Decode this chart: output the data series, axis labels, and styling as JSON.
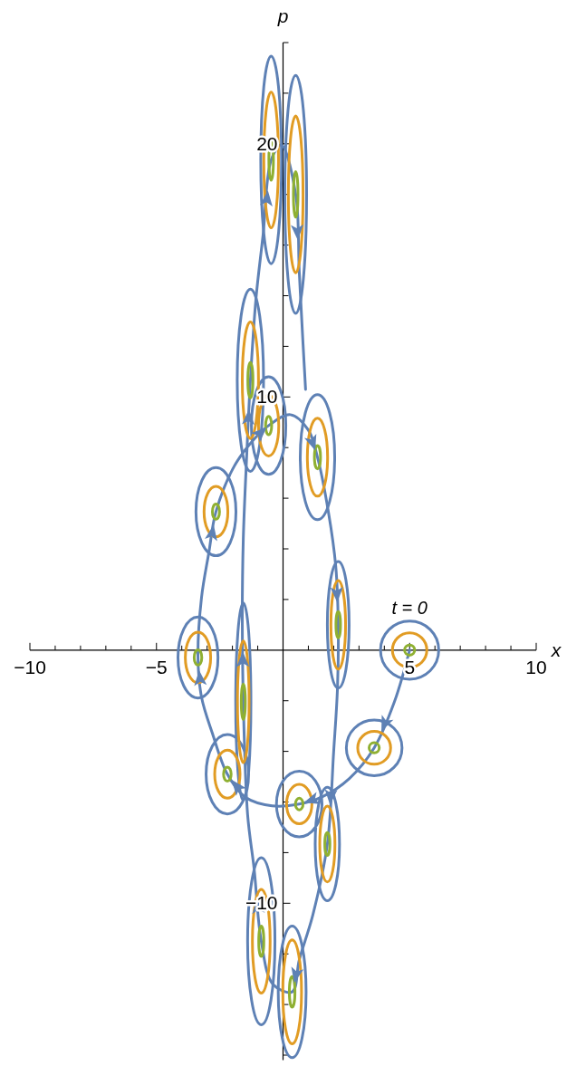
{
  "chart_data": {
    "type": "line",
    "xlabel": "x",
    "ylabel": "p",
    "xlim": [
      -10,
      10
    ],
    "ylim": [
      -16.2,
      24
    ],
    "xticks": [
      -10,
      {
        "value": -9,
        "label": null
      },
      {
        "value": -8,
        "label": null
      },
      {
        "value": -7,
        "label": null
      },
      {
        "value": -6,
        "label": null
      },
      -5,
      {
        "value": -4,
        "label": null
      },
      {
        "value": -3,
        "label": null
      },
      {
        "value": -2,
        "label": null
      },
      {
        "value": -1,
        "label": null
      },
      {
        "value": 1,
        "label": null
      },
      {
        "value": 2,
        "label": null
      },
      {
        "value": 3,
        "label": null
      },
      {
        "value": 4,
        "label": null
      },
      5,
      {
        "value": 6,
        "label": null
      },
      {
        "value": 7,
        "label": null
      },
      {
        "value": 8,
        "label": null
      },
      {
        "value": 9,
        "label": null
      },
      10
    ],
    "yticks": [
      {
        "value": -16,
        "label": null
      },
      {
        "value": -14,
        "label": null
      },
      {
        "value": -12,
        "label": null
      },
      -10,
      {
        "value": -8,
        "label": null
      },
      {
        "value": -6,
        "label": null
      },
      {
        "value": -4,
        "label": null
      },
      {
        "value": -2,
        "label": null
      },
      {
        "value": 2,
        "label": null
      },
      {
        "value": 4,
        "label": null
      },
      {
        "value": 6,
        "label": null
      },
      {
        "value": 8,
        "label": null
      },
      10,
      {
        "value": 12,
        "label": null
      },
      {
        "value": 14,
        "label": null
      },
      {
        "value": 16,
        "label": null
      },
      {
        "value": 18,
        "label": null
      },
      20,
      {
        "value": 22,
        "label": null
      },
      {
        "value": 24,
        "label": null
      }
    ],
    "annotations": [
      {
        "text": "t = 0",
        "x": 5,
        "y": 0
      }
    ],
    "series": [
      {
        "color": "#5e81b5",
        "x": [
          5,
          4.4,
          3.6,
          2.61,
          1.54,
          0.64,
          -0.43,
          -1.5,
          -2.2,
          -2.79,
          -3.22,
          -3.36,
          -3.22,
          -2.93,
          -2.65,
          -1.93,
          -1.14,
          -0.57,
          0.29,
          1.0,
          1.36,
          1.79,
          2.08,
          2.18,
          2.15,
          2.0,
          1.75,
          1.18,
          0.64,
          0.36,
          -0.4,
          -0.86,
          -1.14,
          -1.4,
          -1.57,
          -1.61,
          -1.57,
          -1.43,
          -1.29,
          -1.07,
          -0.79,
          -0.47,
          -0.07,
          0.5,
          0.64,
          0.79,
          0.89
        ],
        "values": [
          0,
          -2.04,
          -3.86,
          -5.08,
          -5.8,
          -6.08,
          -6.15,
          -5.8,
          -4.9,
          -3.29,
          -1.86,
          -0.29,
          2.08,
          3.86,
          5.47,
          7.26,
          8.34,
          8.87,
          9.3,
          8.69,
          7.62,
          5.47,
          3.33,
          1.0,
          -1.5,
          -4.0,
          -7.66,
          -10.45,
          -12.24,
          -13.5,
          -13.2,
          -11.5,
          -8.66,
          -6.5,
          -2.04,
          1.36,
          4.4,
          7.8,
          10.66,
          13.88,
          16.39,
          19.36,
          19.96,
          18.0,
          14.96,
          12.09,
          10.3
        ]
      },
      {
        "color": "#5e81b5",
        "x": [
          6.15,
          5,
          3.85,
          5,
          6.15,
          null,
          4.7,
          3.6,
          2.5,
          3.6,
          4.7,
          null,
          1.54,
          0.64,
          -0.26,
          0.64,
          1.54,
          null,
          -1.36,
          -2.2,
          -3.04,
          -2.2,
          -1.36,
          null,
          -2.57,
          -3.36,
          -4.15,
          -3.36,
          -2.57,
          null,
          -1.86,
          -2.65,
          -3.44,
          -2.65,
          -1.86,
          null,
          0.11,
          -0.57,
          -1.25,
          -0.57,
          0.11,
          null,
          2.04,
          1.36,
          0.68,
          1.36,
          2.04,
          null,
          2.61,
          2.18,
          1.75,
          2.18,
          2.61,
          null,
          2.23,
          1.75,
          1.27,
          1.75,
          2.23,
          null,
          0.91,
          0.36,
          -0.19,
          0.36,
          0.91,
          null,
          -0.32,
          -0.86,
          -1.4,
          -0.86,
          -0.32,
          null,
          -1.27,
          -1.57,
          -1.87,
          -1.57,
          -1.27,
          null,
          -0.77,
          -1.29,
          -1.81,
          -1.29,
          -0.77,
          null,
          -0.06,
          -0.47,
          -0.88,
          -0.47,
          -0.06,
          null,
          0.93,
          0.5,
          0.07,
          0.5,
          0.93
        ],
        "values": [
          0,
          1.15,
          0,
          -1.15,
          0,
          null,
          -3.86,
          -2.76,
          -3.86,
          -4.96,
          -3.86,
          null,
          -6.08,
          -4.78,
          -6.08,
          -7.38,
          -6.08,
          null,
          -4.9,
          -3.33,
          -4.9,
          -6.47,
          -4.9,
          null,
          -0.29,
          1.31,
          -0.29,
          -1.89,
          -0.29,
          null,
          5.47,
          7.21,
          5.47,
          3.73,
          5.47,
          null,
          8.87,
          10.8,
          8.87,
          6.94,
          8.87,
          null,
          7.62,
          10.09,
          7.62,
          5.15,
          7.62,
          null,
          1,
          3.5,
          1,
          -1.5,
          1,
          null,
          -7.66,
          -5.42,
          -7.66,
          -9.9,
          -7.66,
          null,
          -13.5,
          -10.9,
          -13.5,
          -16.1,
          -13.5,
          null,
          -11.5,
          -8.2,
          -11.5,
          -14.8,
          -11.5,
          null,
          -2.04,
          1.86,
          -2.04,
          -5.94,
          -2.04,
          null,
          10.66,
          14.26,
          10.66,
          7.06,
          10.66,
          null,
          19.36,
          23.46,
          19.36,
          15.26,
          19.36,
          null,
          18,
          22.7,
          18,
          13.3,
          18
        ]
      },
      {
        "color": "#e19c24",
        "x": [
          5.68,
          5,
          4.32,
          5,
          5.68,
          null,
          4.25,
          3.6,
          2.95,
          3.6,
          4.25,
          null,
          1.14,
          0.64,
          0.14,
          0.64,
          1.14,
          null,
          -1.7,
          -2.2,
          -2.7,
          -2.2,
          -1.7,
          null,
          -2.86,
          -3.36,
          -3.86,
          -3.36,
          -2.86,
          null,
          -2.18,
          -2.65,
          -3.12,
          -2.65,
          -2.18,
          null,
          -0.17,
          -0.57,
          -0.97,
          -0.57,
          -0.17,
          null,
          1.76,
          1.36,
          0.96,
          1.36,
          1.76,
          null,
          2.47,
          2.18,
          1.89,
          2.18,
          2.47,
          null,
          2.05,
          1.75,
          1.45,
          1.75,
          2.05,
          null,
          0.73,
          0.36,
          -0.01,
          0.36,
          0.73,
          null,
          -0.51,
          -0.86,
          -1.21,
          -0.86,
          -0.51,
          null,
          -1.34,
          -1.57,
          -1.8,
          -1.57,
          -1.34,
          null,
          -0.97,
          -1.29,
          -1.61,
          -1.29,
          -0.97,
          null,
          -0.18,
          -0.47,
          -0.76,
          -0.47,
          -0.18,
          null,
          0.79,
          0.5,
          0.21,
          0.5,
          0.79
        ],
        "values": [
          0,
          0.68,
          0,
          -0.68,
          0,
          null,
          -3.86,
          -3.21,
          -3.86,
          -4.51,
          -3.86,
          null,
          -6.08,
          -5.3,
          -6.08,
          -6.86,
          -6.08,
          null,
          -4.9,
          -3.95,
          -4.9,
          -5.85,
          -4.9,
          null,
          -0.29,
          0.71,
          -0.29,
          -1.29,
          -0.29,
          null,
          5.47,
          6.47,
          5.47,
          4.47,
          5.47,
          null,
          8.87,
          10.07,
          8.87,
          7.67,
          8.87,
          null,
          7.62,
          9.16,
          7.62,
          6.08,
          7.62,
          null,
          1,
          2.75,
          1,
          -0.75,
          1,
          null,
          -7.66,
          -6.16,
          -7.66,
          -9.16,
          -7.66,
          null,
          -13.5,
          -11.45,
          -13.5,
          -15.55,
          -13.5,
          null,
          -11.5,
          -9.45,
          -11.5,
          -13.55,
          -11.5,
          null,
          -2.04,
          0.36,
          -2.04,
          -4.44,
          -2.04,
          null,
          10.66,
          12.96,
          10.66,
          8.36,
          10.66,
          null,
          19.36,
          22.04,
          19.36,
          16.68,
          19.36,
          null,
          18,
          21.1,
          18,
          14.9,
          18
        ]
      },
      {
        "color": "#8fb032",
        "x": [
          5.2,
          5,
          4.8,
          5,
          5.2,
          null,
          3.8,
          3.6,
          3.4,
          3.6,
          3.8,
          null,
          0.79,
          0.64,
          0.49,
          0.64,
          0.79,
          null,
          -2.05,
          -2.2,
          -2.35,
          -2.2,
          -2.05,
          null,
          -3.21,
          -3.36,
          -3.51,
          -3.36,
          -3.21,
          null,
          -2.51,
          -2.65,
          -2.79,
          -2.65,
          -2.51,
          null,
          -0.45,
          -0.57,
          -0.69,
          -0.57,
          -0.45,
          null,
          1.48,
          1.36,
          1.24,
          1.36,
          1.48,
          null,
          2.27,
          2.18,
          2.09,
          2.18,
          2.27,
          null,
          1.85,
          1.75,
          1.65,
          1.75,
          1.85,
          null,
          0.47,
          0.36,
          0.25,
          0.36,
          0.47,
          null,
          -0.76,
          -0.86,
          -0.96,
          -0.86,
          -0.76,
          null,
          -1.49,
          -1.57,
          -1.65,
          -1.57,
          -1.49,
          null,
          -1.19,
          -1.29,
          -1.39,
          -1.29,
          -1.19,
          null,
          -0.38,
          -0.47,
          -0.56,
          -0.47,
          -0.38,
          null,
          0.59,
          0.5,
          0.41,
          0.5,
          0.59
        ],
        "values": [
          0,
          0.2,
          0,
          -0.2,
          0,
          null,
          -3.86,
          -3.66,
          -3.86,
          -4.06,
          -3.86,
          null,
          -6.08,
          -5.85,
          -6.08,
          -6.31,
          -6.08,
          null,
          -4.9,
          -4.62,
          -4.9,
          -5.18,
          -4.9,
          null,
          -0.29,
          0.01,
          -0.29,
          -0.59,
          -0.29,
          null,
          5.47,
          5.77,
          5.47,
          5.17,
          5.47,
          null,
          8.87,
          9.23,
          8.87,
          8.51,
          8.87,
          null,
          7.62,
          8.08,
          7.62,
          7.16,
          7.62,
          null,
          1,
          1.52,
          1,
          0.48,
          1,
          null,
          -7.66,
          -7.21,
          -7.66,
          -8.11,
          -7.66,
          null,
          -13.5,
          -12.9,
          -13.5,
          -14.1,
          -13.5,
          null,
          -11.5,
          -10.9,
          -11.5,
          -12.1,
          -11.5,
          null,
          -2.04,
          -1.34,
          -2.04,
          -2.74,
          -2.04,
          null,
          10.66,
          11.36,
          10.66,
          9.96,
          10.66,
          null,
          19.36,
          20.16,
          19.36,
          18.56,
          19.36,
          null,
          18,
          18.9,
          18,
          17.1,
          18
        ]
      }
    ]
  }
}
